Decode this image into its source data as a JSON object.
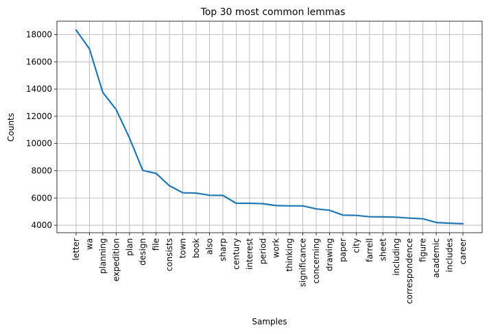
{
  "chart_data": {
    "type": "line",
    "title": "Top 30 most common lemmas",
    "xlabel": "Samples",
    "ylabel": "Counts",
    "categories": [
      "letter",
      "wa",
      "planning",
      "expedition",
      "plan",
      "design",
      "file",
      "consists",
      "town",
      "book",
      "also",
      "sharp",
      "century",
      "interest",
      "period",
      "work",
      "thinking",
      "significance",
      "concerning",
      "drawing",
      "paper",
      "city",
      "farrell",
      "sheet",
      "including",
      "correspondence",
      "figure",
      "academic",
      "includes",
      "career"
    ],
    "values": [
      18330,
      16950,
      13750,
      12500,
      10400,
      8030,
      7800,
      6900,
      6380,
      6360,
      6200,
      6190,
      5610,
      5610,
      5580,
      5440,
      5420,
      5420,
      5200,
      5100,
      4740,
      4720,
      4620,
      4610,
      4590,
      4520,
      4470,
      4200,
      4150,
      4110
    ],
    "ylim": [
      3450,
      18980
    ],
    "yticks": [
      4000,
      6000,
      8000,
      10000,
      12000,
      14000,
      16000,
      18000
    ],
    "grid": true,
    "color": "#1f77b4"
  }
}
